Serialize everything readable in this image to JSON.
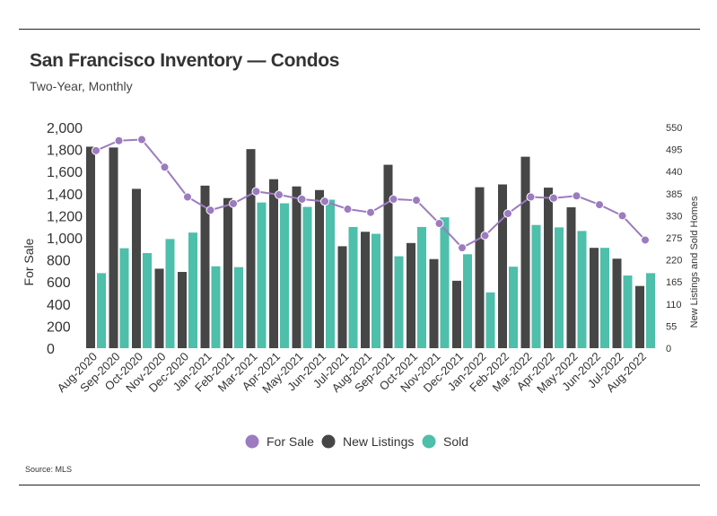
{
  "header": {
    "title": "San Francisco Inventory — Condos",
    "subtitle": "Two-Year, Monthly"
  },
  "footer": {
    "source": "Source:  MLS"
  },
  "colors": {
    "for_sale": "#9c7bbf",
    "new_listings": "#464646",
    "sold": "#4dbfaa"
  },
  "chart_data": {
    "type": "bar",
    "categories": [
      "Aug-2020",
      "Sep-2020",
      "Oct-2020",
      "Nov-2020",
      "Dec-2020",
      "Jan-2021",
      "Feb-2021",
      "Mar-2021",
      "Apr-2021",
      "May-2021",
      "Jun-2021",
      "Jul-2021",
      "Aug-2021",
      "Sep-2021",
      "Oct-2021",
      "Nov-2021",
      "Dec-2021",
      "Jan-2022",
      "Feb-2022",
      "Mar-2022",
      "Apr-2022",
      "May-2022",
      "Jun-2022",
      "Jul-2022",
      "Aug-2022"
    ],
    "series": [
      {
        "name": "New Listings",
        "type": "bar",
        "axis": "right",
        "values": [
          502,
          500,
          397,
          198,
          190,
          405,
          374,
          496,
          421,
          403,
          394,
          254,
          290,
          457,
          262,
          222,
          168,
          401,
          408,
          477,
          400,
          351,
          250,
          223,
          155
        ]
      },
      {
        "name": "Sold",
        "type": "bar",
        "axis": "right",
        "values": [
          187,
          249,
          237,
          272,
          288,
          204,
          202,
          363,
          361,
          352,
          370,
          302,
          285,
          229,
          302,
          326,
          234,
          139,
          203,
          307,
          301,
          292,
          250,
          181,
          187
        ]
      },
      {
        "name": "For Sale",
        "type": "line",
        "axis": "left",
        "values": [
          1790,
          1880,
          1890,
          1640,
          1370,
          1250,
          1310,
          1420,
          1390,
          1350,
          1330,
          1260,
          1230,
          1350,
          1340,
          1130,
          910,
          1020,
          1220,
          1370,
          1360,
          1380,
          1300,
          1200,
          980
        ]
      }
    ],
    "left_axis": {
      "label": "For Sale",
      "min": 0,
      "max": 2000,
      "ticks": [
        "0",
        "200",
        "400",
        "600",
        "800",
        "1,000",
        "1,200",
        "1,400",
        "1,600",
        "1,800",
        "2,000"
      ]
    },
    "right_axis": {
      "label": "New Listings and Sold Homes",
      "min": 0,
      "max": 550,
      "ticks": [
        "0",
        "55",
        "110",
        "165",
        "220",
        "275",
        "330",
        "385",
        "440",
        "495",
        "550"
      ]
    },
    "legend": {
      "position": "bottom",
      "items": [
        "For Sale",
        "New Listings",
        "Sold"
      ]
    },
    "grid": false
  }
}
